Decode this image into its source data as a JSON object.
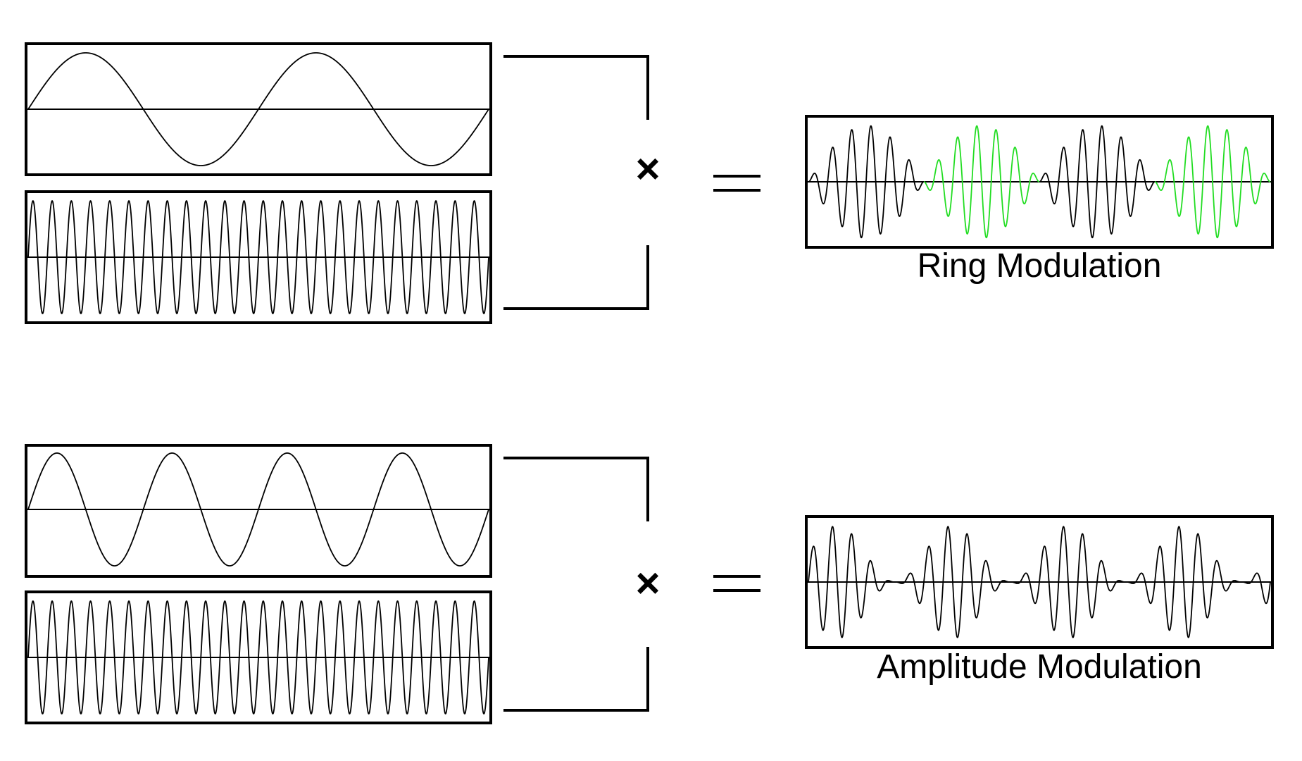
{
  "colors": {
    "stroke": "#000000",
    "highlight": "#22dd22",
    "background": "#ffffff"
  },
  "sections": [
    {
      "name": "ring",
      "label": "Ring Modulation",
      "operator": "×",
      "equals": "=",
      "modulator_cycles": 2,
      "carrier_cycles": 24,
      "mode": "ring",
      "highlight_alternate_lobes": true
    },
    {
      "name": "amplitude",
      "label": "Amplitude Modulation",
      "operator": "×",
      "equals": "=",
      "modulator_cycles": 4,
      "carrier_cycles": 24,
      "mode": "am",
      "highlight_alternate_lobes": false
    }
  ]
}
